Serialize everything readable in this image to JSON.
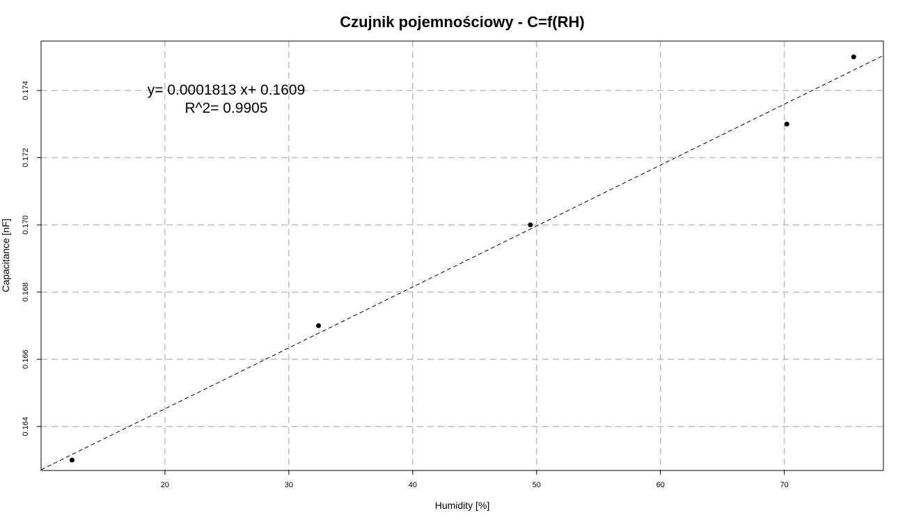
{
  "chart_data": {
    "type": "scatter",
    "title": "Czujnik pojemnościowy - C=f(RH)",
    "xlabel": "Humidity [%]",
    "ylabel": "Capacitance [nF]",
    "xlim": [
      10.0,
      78.0
    ],
    "ylim": [
      0.16269,
      0.17547
    ],
    "xticks": [
      20,
      30,
      40,
      50,
      60,
      70
    ],
    "yticks": [
      0.164,
      0.166,
      0.168,
      0.17,
      0.172,
      0.174
    ],
    "grid": true,
    "series": [
      {
        "x": [
          12.5,
          32.4,
          49.5,
          70.2,
          75.6
        ],
        "y": [
          0.163,
          0.167,
          0.17,
          0.173,
          0.175
        ]
      }
    ],
    "fit": {
      "slope": 0.0001813,
      "intercept": 0.1609,
      "style": "dashed"
    },
    "annotations": {
      "equation": "y= 0.0001813 x+ 0.1609",
      "r2": "R^2= 0.9905"
    }
  }
}
